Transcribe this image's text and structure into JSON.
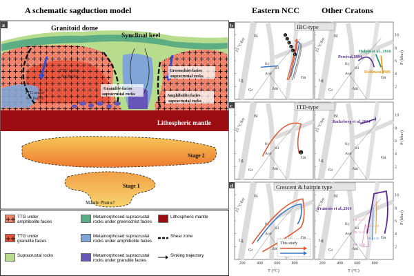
{
  "titles": {
    "left": "A schematic sagduction model",
    "eastern": "Eastern NCC",
    "other": "Other Cratons"
  },
  "panel_a": {
    "letter": "a",
    "granitoid_dome": "Granitoid dome",
    "synclinal_keel": "Synclinal keel",
    "ttg_am_1": "TTG under",
    "ttg_am_2": "Am facies",
    "ttg_gn_1": "TTG under",
    "ttg_gn_2": "Gn facies",
    "greenschist_1": "Greenschist-facies",
    "greenschist_2": "supracrustal rocks",
    "granulite_1": "Granulite-facies",
    "granulite_2": "supracrustal rocks",
    "amphibolite_1": "Amphibolite-facies",
    "amphibolite_2": "supracrustal rocks",
    "lith_mantle": "Lithospheric mantle",
    "stage2": "Stage 2",
    "stage1": "Stage 1",
    "plume": "Mantle Plume?"
  },
  "legend": [
    {
      "label1": "TTG under",
      "label2": "amphibolite facies",
      "color": "#f0836b",
      "pattern": "plus"
    },
    {
      "label1": "Metamorphosed supracrustal",
      "label2": "rocks under greenschist facies",
      "color": "#5cad84",
      "pattern": "none"
    },
    {
      "label1": "Lithospheric mantle",
      "label2": "",
      "color": "#9b0d12",
      "pattern": "none"
    },
    {
      "label1": "TTG under",
      "label2": "granulite facies",
      "color": "#e8563f",
      "pattern": "plus"
    },
    {
      "label1": "Metamorphosed supracrustal",
      "label2": "rocks under amphibolite facies",
      "color": "#7fa6d6",
      "pattern": "none"
    },
    {
      "label1": "Shear zone",
      "label2": "",
      "color": "",
      "pattern": "shear"
    },
    {
      "label1": "Supracrustal rocks",
      "label2": "",
      "color": "#b8dc8e",
      "pattern": "none"
    },
    {
      "label1": "Metamorphosed supracrustal",
      "label2": "rocks under granulite facies",
      "color": "#6656b8",
      "pattern": "none"
    },
    {
      "label1": "Sinking trajectory",
      "label2": "",
      "color": "",
      "pattern": "traj"
    }
  ],
  "pt_panels": {
    "b_letter": "b",
    "c_letter": "c",
    "d_letter": "d",
    "b_type": "IBC-type",
    "c_type": "ITD-type",
    "d_type": "Crescent & hairpin type",
    "gradient": "15 °C/km",
    "bl": "Bl",
    "lg": "Lg",
    "gr": "Gr",
    "am": "Am",
    "gn": "Gn",
    "ky": "Ky",
    "sil": "Sil",
    "and": "And",
    "ylabel": "P (kbar)",
    "xlabel": "T (°C)",
    "x_ticks": [
      "200",
      "400",
      "600",
      "800"
    ],
    "y_ticks": [
      "2",
      "4",
      "6",
      "8",
      "10"
    ],
    "this_study": "This study",
    "b_refs": [
      "Halpin et al., 2016",
      "Percival,1994",
      "Rollinson,1989"
    ],
    "c_refs": [
      "Backeberg et al.,2014"
    ],
    "d_refs": [
      "Francois et al.,2014"
    ],
    "d_small": [
      "PR-11-17",
      "PR-11-28",
      "PR-11-25",
      "PR-11-35",
      "PR-11-30"
    ],
    "c_point": "1",
    "b_points": [
      "1",
      "2",
      "3",
      "4",
      "5",
      "6"
    ]
  },
  "colors": {
    "ttg_am": "#f0836b",
    "ttg_gn": "#e8563f",
    "supracrustal": "#b8dc8e",
    "greenschist": "#5cad84",
    "amphibolite": "#7fa6d6",
    "granulite": "#6656b8",
    "mantle": "#9b0d12",
    "this_study_red": "#e2552e",
    "this_study_blue": "#3779c4",
    "purple_path": "#5a2a94",
    "green_path": "#1f8f6a",
    "orange_path": "#e79a1a"
  }
}
